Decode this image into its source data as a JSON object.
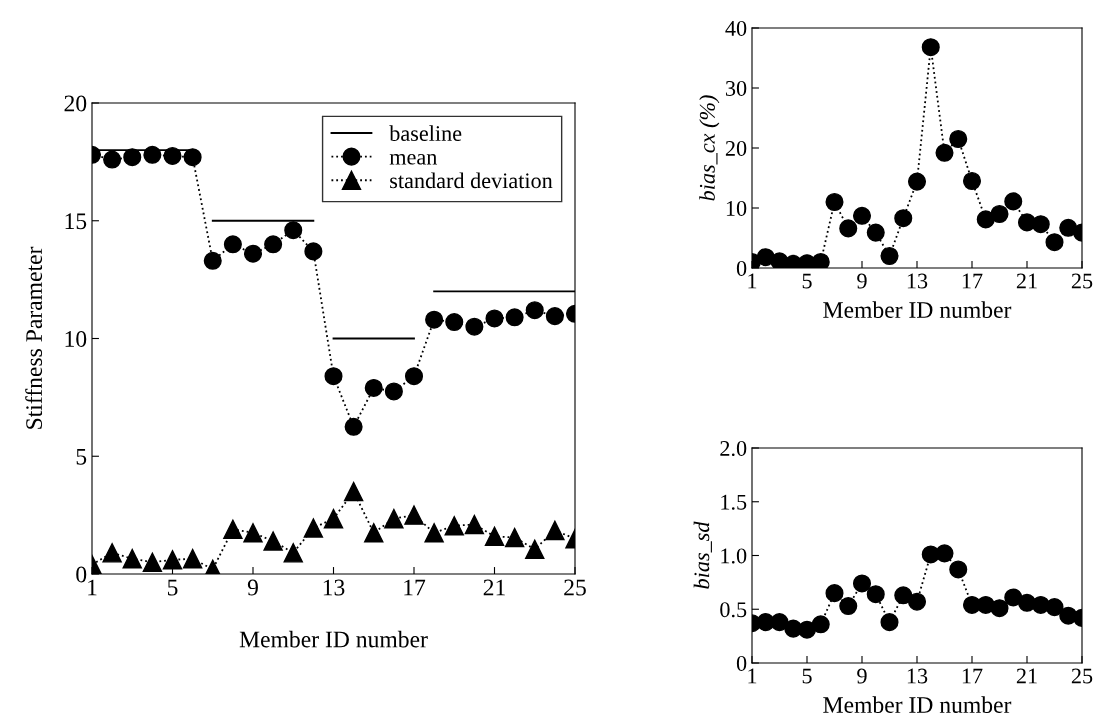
{
  "chart_data": [
    {
      "type": "line",
      "xlabel": "Member ID number",
      "ylabel": "Stiffness Parameter",
      "x": [
        1,
        2,
        3,
        4,
        5,
        6,
        7,
        8,
        9,
        10,
        11,
        12,
        13,
        14,
        15,
        16,
        17,
        18,
        19,
        20,
        21,
        22,
        23,
        24,
        25
      ],
      "xlim": [
        1,
        25
      ],
      "xticks": [
        1,
        5,
        9,
        13,
        17,
        21,
        25
      ],
      "ylim": [
        0,
        20
      ],
      "yticks": [
        0,
        5,
        10,
        15,
        20
      ],
      "grid": false,
      "legend": "top right",
      "series": [
        {
          "name": "baseline",
          "color": "#000000",
          "marker": "none",
          "line_style": "solid",
          "x": [
            1,
            6,
            6.5,
            7,
            12,
            12.5,
            13,
            17,
            17.5,
            18,
            25
          ],
          "values": [
            18,
            18,
            null,
            15,
            15,
            null,
            10,
            10,
            null,
            12,
            12
          ]
        },
        {
          "name": "mean",
          "color": "#000000",
          "marker": "circle",
          "line_style": "dotted",
          "values": [
            17.8,
            17.6,
            17.7,
            17.8,
            17.75,
            17.7,
            13.3,
            14.0,
            13.6,
            14.0,
            14.6,
            13.7,
            8.4,
            6.25,
            7.9,
            7.75,
            8.4,
            10.8,
            10.7,
            10.5,
            10.85,
            10.9,
            11.2,
            10.95,
            11.05
          ]
        },
        {
          "name": "standard deviation",
          "color": "#000000",
          "marker": "triangle",
          "line_style": "dotted",
          "values": [
            0.4,
            0.9,
            0.65,
            0.5,
            0.6,
            0.65,
            0.2,
            1.9,
            1.75,
            1.4,
            0.9,
            1.95,
            2.35,
            3.5,
            1.75,
            2.35,
            2.5,
            1.75,
            2.05,
            2.1,
            1.6,
            1.55,
            1.05,
            1.85,
            1.5
          ]
        }
      ]
    },
    {
      "type": "line",
      "xlabel": "Member ID number",
      "ylabel": "bias_cx (%)",
      "x": [
        1,
        2,
        3,
        4,
        5,
        6,
        7,
        8,
        9,
        10,
        11,
        12,
        13,
        14,
        15,
        16,
        17,
        18,
        19,
        20,
        21,
        22,
        23,
        24,
        25
      ],
      "xlim": [
        1,
        25
      ],
      "xticks": [
        1,
        5,
        9,
        13,
        17,
        21,
        25
      ],
      "ylim": [
        0,
        40
      ],
      "yticks": [
        0,
        10,
        20,
        30,
        40
      ],
      "grid": false,
      "series": [
        {
          "color": "#000000",
          "marker": "circle",
          "line_style": "dotted",
          "values": [
            1.0,
            1.8,
            1.1,
            0.7,
            0.8,
            1.0,
            11.0,
            6.6,
            8.7,
            5.9,
            2.0,
            8.3,
            14.4,
            36.8,
            19.2,
            21.5,
            14.5,
            8.1,
            9.0,
            11.1,
            7.6,
            7.3,
            4.3,
            6.7,
            5.9
          ]
        }
      ]
    },
    {
      "type": "line",
      "xlabel": "Member ID number",
      "ylabel": "bias_sd",
      "x": [
        1,
        2,
        3,
        4,
        5,
        6,
        7,
        8,
        9,
        10,
        11,
        12,
        13,
        14,
        15,
        16,
        17,
        18,
        19,
        20,
        21,
        22,
        23,
        24,
        25
      ],
      "xlim": [
        1,
        25
      ],
      "xticks": [
        1,
        5,
        9,
        13,
        17,
        21,
        25
      ],
      "ylim": [
        0,
        2.0
      ],
      "yticks": [
        0,
        0.5,
        {
          "value": 1.0,
          "label": "1.0"
        },
        1.5,
        {
          "value": 2.0,
          "label": "2.0"
        }
      ],
      "grid": false,
      "series": [
        {
          "color": "#000000",
          "marker": "circle",
          "line_style": "dotted",
          "values": [
            0.37,
            0.38,
            0.38,
            0.32,
            0.31,
            0.36,
            0.65,
            0.53,
            0.74,
            0.64,
            0.38,
            0.63,
            0.57,
            1.01,
            1.02,
            0.87,
            0.54,
            0.54,
            0.51,
            0.61,
            0.56,
            0.54,
            0.52,
            0.44,
            0.42
          ]
        }
      ]
    }
  ]
}
